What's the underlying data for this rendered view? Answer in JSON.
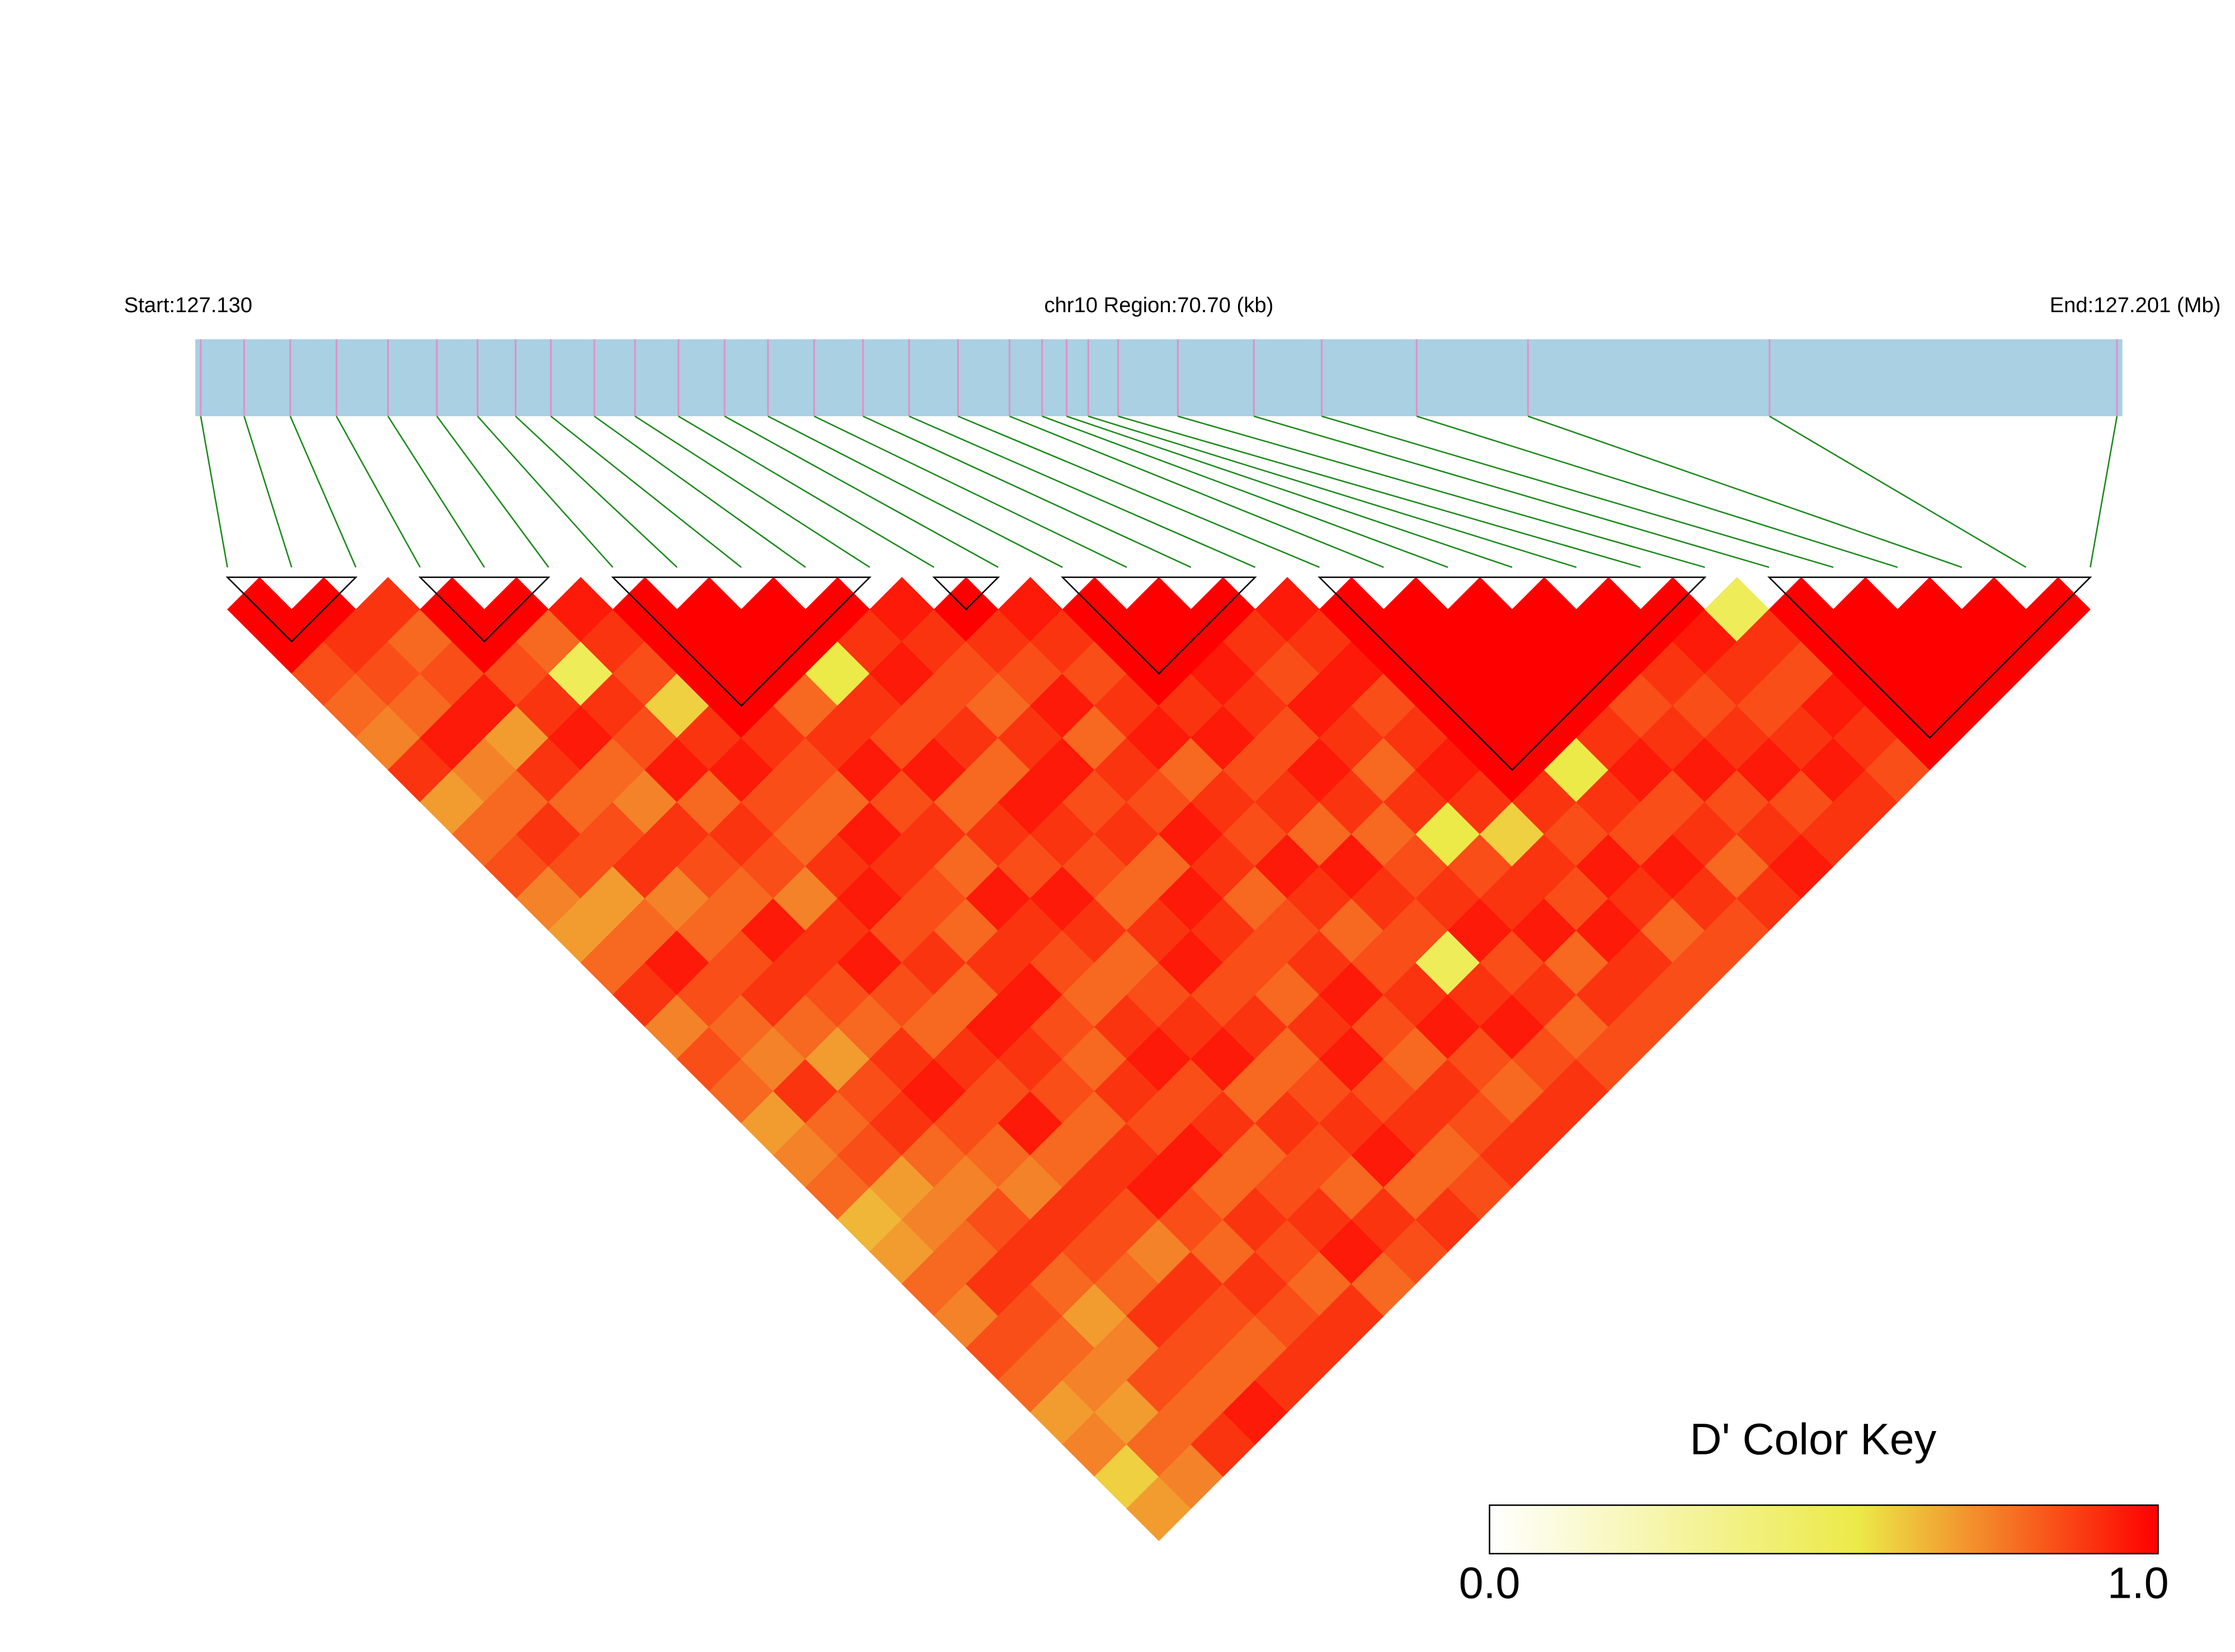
{
  "chart_data": {
    "type": "ld-heatmap",
    "start_label": "Start:127.130",
    "region_label": "chr10 Region:70.70 (kb)",
    "end_label": "End:127.201 (Mb)",
    "key_title": "D' Color Key",
    "xlim": [
      127.13,
      127.201
    ],
    "positions": [
      127.1302,
      127.1318,
      127.1335,
      127.1352,
      127.1371,
      127.1389,
      127.1404,
      127.1418,
      127.1431,
      127.1447,
      127.1462,
      127.1478,
      127.1495,
      127.1511,
      127.1528,
      127.1546,
      127.1563,
      127.1581,
      127.16,
      127.1612,
      127.1621,
      127.1629,
      127.164,
      127.1662,
      127.169,
      127.1715,
      127.175,
      127.1791,
      127.188,
      127.2008
    ],
    "dprime": [
      [
        1,
        1,
        0.85,
        0.8,
        0.75,
        0.9,
        0.7,
        0.8,
        0.85,
        0.75,
        0.7,
        0.8,
        0.9,
        0.75,
        0.85,
        0.8,
        0.7,
        0.75,
        0.8,
        0.65,
        0.7,
        0.8,
        0.75,
        0.85,
        0.8,
        0.7,
        0.75,
        0.6,
        0.7
      ],
      [
        1,
        0.9,
        0.85,
        0.8,
        0.95,
        0.75,
        0.8,
        0.9,
        0.85,
        0.7,
        0.8,
        0.95,
        0.85,
        0.8,
        0.75,
        0.9,
        0.8,
        0.85,
        0.7,
        0.75,
        0.8,
        0.9,
        0.85,
        0.8,
        0.75,
        0.7,
        0.8,
        0.75
      ],
      [
        0.9,
        0.8,
        0.85,
        0.95,
        0.7,
        0.9,
        0.8,
        0.85,
        0.9,
        0.75,
        0.8,
        0.85,
        0.9,
        0.8,
        0.7,
        0.85,
        0.9,
        0.8,
        0.75,
        0.85,
        0.9,
        0.8,
        0.7,
        0.75,
        0.85,
        0.8,
        0.9
      ],
      [
        1,
        1,
        0.85,
        0.9,
        0.95,
        0.8,
        0.75,
        0.9,
        0.85,
        0.8,
        0.95,
        0.9,
        0.85,
        0.8,
        0.9,
        0.95,
        0.85,
        0.8,
        0.75,
        0.9,
        0.85,
        0.8,
        0.9,
        0.85,
        0.8,
        0.95
      ],
      [
        1,
        0.8,
        0.5,
        0.9,
        0.85,
        0.95,
        0.8,
        0.9,
        0.85,
        0.75,
        0.9,
        0.95,
        0.85,
        0.8,
        0.9,
        0.85,
        0.95,
        0.8,
        0.9,
        0.85,
        0.75,
        0.9,
        0.85,
        0.8,
        0.9
      ],
      [
        0.95,
        0.9,
        0.85,
        0.6,
        0.9,
        0.95,
        0.85,
        0.8,
        0.9,
        0.95,
        0.85,
        0.9,
        0.8,
        0.95,
        0.9,
        0.85,
        0.8,
        0.9,
        0.95,
        0.85,
        0.8,
        0.9,
        0.85,
        0.9
      ],
      [
        1,
        1,
        1,
        1,
        0.9,
        0.85,
        0.8,
        0.95,
        0.9,
        0.85,
        0.8,
        0.9,
        0.95,
        0.85,
        0.8,
        0.9,
        0.85,
        0.95,
        0.8,
        0.9,
        0.85,
        0.8,
        0.9
      ],
      [
        1,
        1,
        1,
        0.8,
        0.9,
        0.95,
        0.85,
        0.9,
        0.8,
        0.95,
        0.9,
        0.85,
        0.8,
        0.9,
        0.95,
        0.85,
        0.9,
        0.8,
        0.85,
        0.9,
        0.95,
        0.8
      ],
      [
        1,
        1,
        0.55,
        0.9,
        0.85,
        0.95,
        0.8,
        0.9,
        0.85,
        0.95,
        0.9,
        0.8,
        0.85,
        0.9,
        0.95,
        0.8,
        0.9,
        0.85,
        0.8,
        0.9,
        0.85
      ],
      [
        1,
        0.9,
        0.95,
        0.85,
        0.9,
        0.8,
        0.95,
        0.9,
        0.85,
        0.8,
        0.9,
        0.95,
        0.85,
        0.9,
        0.8,
        0.85,
        0.9,
        0.95,
        0.8,
        0.9
      ],
      [
        0.95,
        0.9,
        0.85,
        0.8,
        0.9,
        0.95,
        0.85,
        0.9,
        0.8,
        0.95,
        0.9,
        0.85,
        0.8,
        0.9,
        0.95,
        0.85,
        0.9,
        0.8,
        0.85
      ],
      [
        1,
        0.9,
        0.85,
        0.95,
        0.8,
        0.9,
        0.85,
        0.95,
        0.9,
        0.8,
        0.85,
        0.9,
        0.95,
        0.85,
        0.8,
        0.9,
        0.85,
        0.9
      ],
      [
        0.95,
        0.9,
        0.85,
        0.9,
        0.95,
        0.8,
        0.9,
        0.85,
        0.95,
        0.9,
        0.8,
        0.85,
        0.9,
        0.95,
        0.85,
        0.8,
        0.9
      ],
      [
        1,
        1,
        1,
        0.9,
        0.95,
        0.85,
        0.9,
        0.8,
        0.95,
        0.9,
        0.85,
        0.5,
        0.9,
        0.95,
        0.85,
        0.9
      ],
      [
        1,
        1,
        0.95,
        0.9,
        0.85,
        0.95,
        0.9,
        0.8,
        0.85,
        0.9,
        0.95,
        0.85,
        0.9,
        0.8,
        0.85
      ],
      [
        1,
        0.9,
        0.85,
        0.95,
        0.9,
        0.8,
        0.9,
        0.55,
        0.85,
        0.9,
        0.95,
        0.8,
        0.9,
        0.85
      ],
      [
        0.95,
        0.9,
        0.95,
        0.85,
        0.9,
        0.95,
        0.9,
        0.6,
        0.9,
        0.85,
        0.95,
        0.9,
        0.85
      ],
      [
        1,
        1,
        1,
        1,
        1,
        1,
        0.9,
        0.85,
        0.95,
        0.9,
        0.8,
        0.85
      ],
      [
        1,
        1,
        1,
        1,
        1,
        0.55,
        0.9,
        0.85,
        0.95,
        0.9,
        0.85
      ],
      [
        1,
        1,
        1,
        1,
        0.9,
        0.95,
        0.85,
        0.9,
        0.8,
        0.9
      ],
      [
        1,
        1,
        1,
        0.85,
        0.9,
        0.95,
        0.85,
        0.9,
        0.95
      ],
      [
        1,
        1,
        0.9,
        0.85,
        0.9,
        0.95,
        0.85,
        0.9
      ],
      [
        1,
        0.95,
        0.9,
        0.85,
        0.9,
        0.95,
        0.9
      ],
      [
        0.5,
        0.9,
        0.85,
        0.95,
        0.9,
        0.85
      ],
      [
        1,
        1,
        1,
        1,
        1
      ],
      [
        1,
        1,
        1,
        1
      ],
      [
        1,
        1,
        1
      ],
      [
        1,
        1
      ],
      [
        1
      ]
    ],
    "blocks": [
      [
        0,
        2
      ],
      [
        3,
        5
      ],
      [
        6,
        10
      ],
      [
        11,
        12
      ],
      [
        13,
        16
      ],
      [
        17,
        23
      ],
      [
        24,
        29
      ]
    ],
    "colormap": [
      {
        "stop": 0,
        "color": "#ffffff"
      },
      {
        "stop": 0.55,
        "color": "#ecea48"
      },
      {
        "stop": 1,
        "color": "#ff0000"
      }
    ],
    "key_ticks": [
      {
        "value": 0,
        "label": "0.0"
      },
      {
        "value": 1,
        "label": "1.0"
      }
    ],
    "bar_color": "#a9d0e3",
    "snp_color": "#e58fc6",
    "connector_color": "#1a8a1a"
  }
}
